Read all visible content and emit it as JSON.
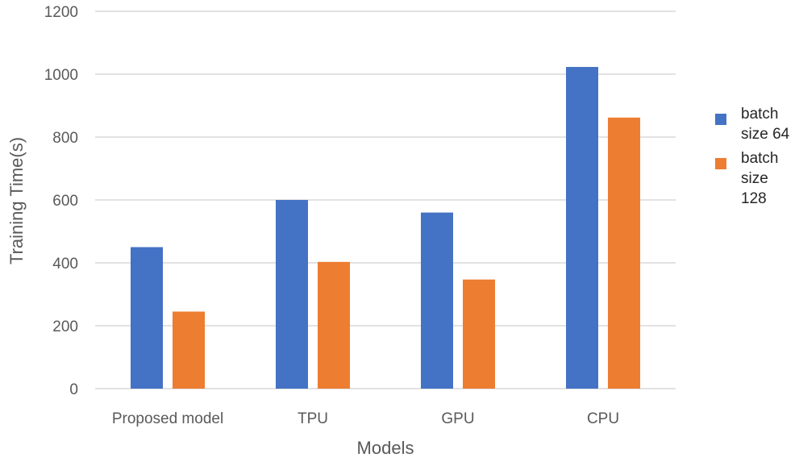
{
  "chart_data": {
    "type": "bar",
    "title": "",
    "xlabel": "Models",
    "ylabel": "Training Time(s)",
    "categories": [
      "Proposed model",
      "TPU",
      "GPU",
      "CPU"
    ],
    "series": [
      {
        "name": "batch size 64",
        "legend_lines": [
          "batch",
          "size 64"
        ],
        "color": "#4472c4",
        "values": [
          450,
          600,
          560,
          1023
        ]
      },
      {
        "name": "batch size 128",
        "legend_lines": [
          "batch",
          "size",
          "128"
        ],
        "color": "#ed7d31",
        "values": [
          245,
          403,
          347,
          862
        ]
      }
    ],
    "ylim": [
      0,
      1200
    ],
    "yticks": [
      0,
      200,
      400,
      600,
      800,
      1000,
      1200
    ],
    "grid": true,
    "legend_position": "right"
  }
}
